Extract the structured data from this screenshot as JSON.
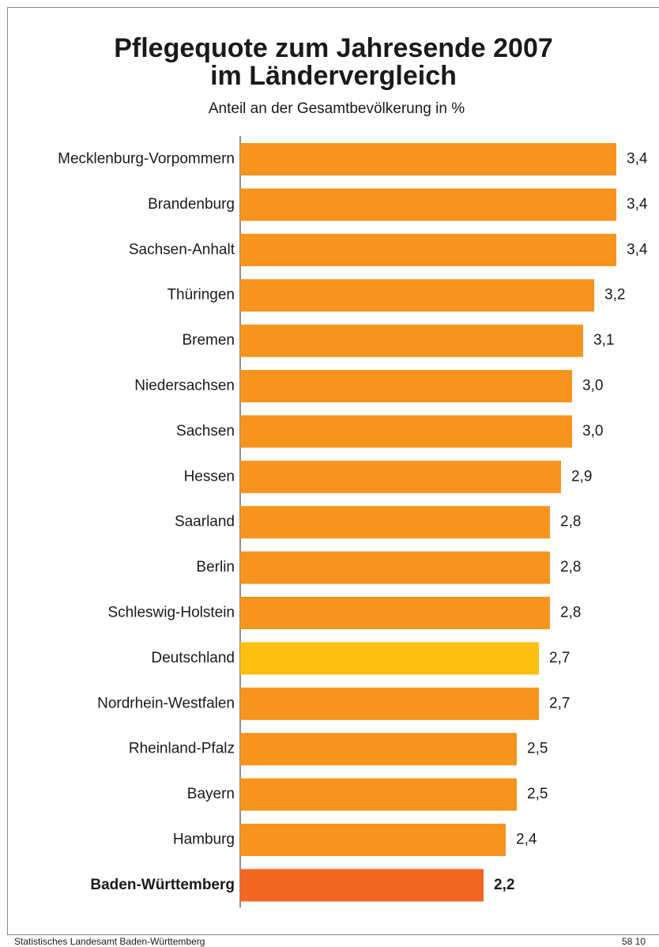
{
  "chart_data": {
    "type": "barh",
    "title": [
      "Pflegequote zum Jahresende 2007",
      "im Ländervergleich"
    ],
    "subtitle": "Anteil an der Gesamtbevölkerung in %",
    "categories": [
      "Mecklenburg-Vorpommern",
      "Brandenburg",
      "Sachsen-Anhalt",
      "Thüringen",
      "Bremen",
      "Niedersachsen",
      "Sachsen",
      "Hessen",
      "Saarland",
      "Berlin",
      "Schleswig-Holstein",
      "Deutschland",
      "Nordrhein-Westfalen",
      "Rheinland-Pfalz",
      "Bayern",
      "Hamburg",
      "Baden-Württemberg"
    ],
    "values": [
      3.4,
      3.4,
      3.4,
      3.2,
      3.1,
      3.0,
      3.0,
      2.9,
      2.8,
      2.8,
      2.8,
      2.7,
      2.7,
      2.5,
      2.5,
      2.4,
      2.2
    ],
    "value_labels": [
      "3,4",
      "3,4",
      "3,4",
      "3,2",
      "3,1",
      "3,0",
      "3,0",
      "2,9",
      "2,8",
      "2,8",
      "2,8",
      "2,7",
      "2,7",
      "2,5",
      "2,5",
      "2,4",
      "2,2"
    ],
    "colors": [
      "#f7941d",
      "#f7941d",
      "#f7941d",
      "#f7941d",
      "#f7941d",
      "#f7941d",
      "#f7941d",
      "#f7941d",
      "#f7941d",
      "#f7941d",
      "#f7941d",
      "#fdc010",
      "#f7941d",
      "#f7941d",
      "#f7941d",
      "#f7941d",
      "#f26522"
    ],
    "source": "Statistisches Landesamt Baden-Württemberg",
    "code": "58 10"
  }
}
